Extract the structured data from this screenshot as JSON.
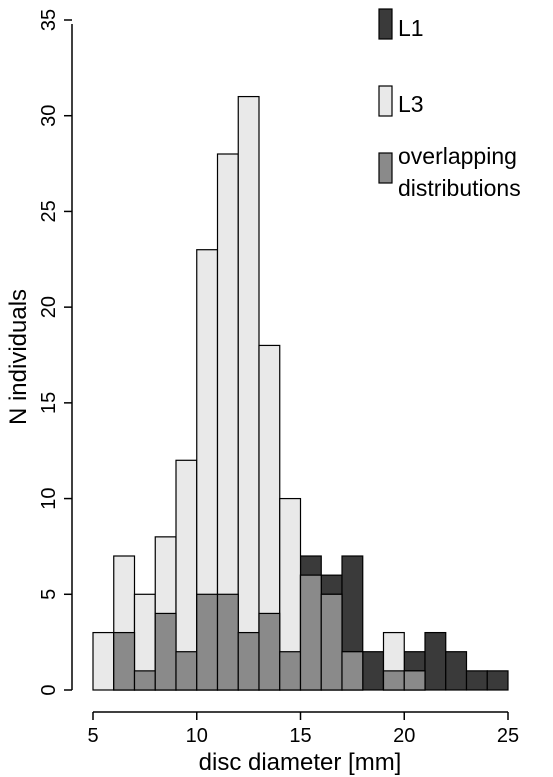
{
  "chart_data": {
    "type": "bar",
    "subtype": "overlapping histogram",
    "xlabel": "disc diameter [mm]",
    "ylabel": "N individuals",
    "xlim": [
      5,
      25
    ],
    "ylim": [
      0,
      35
    ],
    "xticks": [
      "5",
      "10",
      "15",
      "20",
      "25"
    ],
    "yticks": [
      "0",
      "5",
      "10",
      "15",
      "20",
      "25",
      "30",
      "35"
    ],
    "bin_width": 1,
    "bin_starts": [
      5,
      6,
      7,
      8,
      9,
      10,
      11,
      12,
      13,
      14,
      15,
      16,
      17,
      18,
      19,
      20,
      21,
      22,
      23,
      24
    ],
    "legend_position": "top-right",
    "series": [
      {
        "name": "L1",
        "color": "#3a3a3a",
        "values": [
          0,
          3,
          1,
          4,
          2,
          5,
          5,
          3,
          4,
          2,
          7,
          6,
          7,
          2,
          1,
          2,
          3,
          2,
          1,
          1
        ]
      },
      {
        "name": "L3",
        "color": "#e9e9e9",
        "values": [
          3,
          7,
          5,
          8,
          12,
          23,
          28,
          31,
          18,
          10,
          6,
          5,
          2,
          0,
          3,
          1,
          0,
          0,
          0,
          0
        ]
      },
      {
        "name": "overlapping distributions",
        "color": "#8a8a8a",
        "values": [
          0,
          3,
          1,
          4,
          2,
          5,
          5,
          3,
          4,
          2,
          6,
          5,
          2,
          0,
          1,
          1,
          0,
          0,
          0,
          0
        ]
      }
    ]
  }
}
